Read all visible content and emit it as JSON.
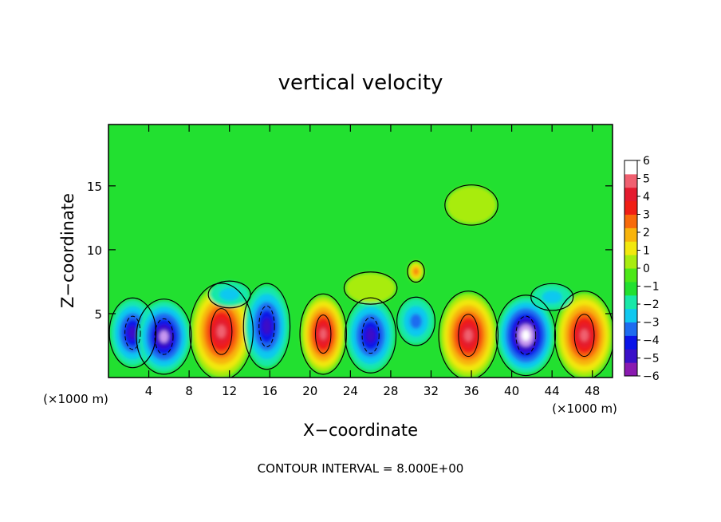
{
  "chart_data": {
    "type": "heatmap",
    "title": "vertical velocity",
    "xlabel": "X−coordinate",
    "ylabel": "Z−coordinate",
    "x_unit_label": "(×1000 m)",
    "x_unit_label_right": "(×1000 m)",
    "footer": "CONTOUR INTERVAL = 8.000E+00",
    "xlim": [
      0,
      50
    ],
    "ylim": [
      0,
      19.8
    ],
    "x_ticks": [
      4,
      8,
      12,
      16,
      20,
      24,
      28,
      32,
      36,
      40,
      44,
      48
    ],
    "x_tick_labels": [
      "4",
      "8",
      "12",
      "16",
      "20",
      "24",
      "28",
      "32",
      "36",
      "40",
      "44",
      "48"
    ],
    "y_ticks": [
      5,
      10,
      15
    ],
    "y_tick_labels": [
      "5",
      "10",
      "15"
    ],
    "colorbar": {
      "min": -6,
      "max": 6,
      "labels": [
        "6",
        "5",
        "4",
        "3",
        "2",
        "1",
        "0",
        "−1",
        "−2",
        "−3",
        "−4",
        "−5",
        "−6"
      ],
      "colors": [
        "#8a1ab0",
        "#3a10c8",
        "#0a14e8",
        "#1e6cf0",
        "#10c8f0",
        "#18e8a8",
        "#22e030",
        "#4ce818",
        "#a8ec10",
        "#f2e80e",
        "#f8b40c",
        "#f86a0a",
        "#f01e14",
        "#e41a2e",
        "#f06070",
        "#ffffff"
      ]
    },
    "cells": [
      {
        "x": 2.4,
        "z": 3.5,
        "w": -5.0,
        "rx": 2.2,
        "rz": 2.6
      },
      {
        "x": 5.5,
        "z": 3.2,
        "w": -5.5,
        "rx": 2.6,
        "rz": 2.8
      },
      {
        "x": 11.2,
        "z": 3.6,
        "w": 7.0,
        "rx": 3.0,
        "rz": 3.6
      },
      {
        "x": 15.7,
        "z": 4.0,
        "w": -5.0,
        "rx": 2.2,
        "rz": 3.2
      },
      {
        "x": 21.3,
        "z": 3.4,
        "w": 6.5,
        "rx": 2.2,
        "rz": 3.0
      },
      {
        "x": 26.0,
        "z": 3.3,
        "w": -4.5,
        "rx": 2.4,
        "rz": 2.8
      },
      {
        "x": 30.5,
        "z": 4.4,
        "w": -2.5,
        "rx": 1.8,
        "rz": 1.8
      },
      {
        "x": 35.7,
        "z": 3.3,
        "w": 7.0,
        "rx": 2.8,
        "rz": 3.3
      },
      {
        "x": 41.4,
        "z": 3.3,
        "w": -6.5,
        "rx": 2.8,
        "rz": 3.0
      },
      {
        "x": 47.2,
        "z": 3.3,
        "w": 7.0,
        "rx": 2.8,
        "rz": 3.3
      },
      {
        "x": 30.5,
        "z": 8.3,
        "w": 3.5,
        "rx": 0.8,
        "rz": 0.8
      },
      {
        "x": 26.0,
        "z": 7.0,
        "w": 1.0,
        "rx": 2.5,
        "rz": 1.2
      },
      {
        "x": 12.0,
        "z": 6.5,
        "w": -1.5,
        "rx": 2.0,
        "rz": 1.0
      },
      {
        "x": 44.0,
        "z": 6.3,
        "w": -1.8,
        "rx": 2.0,
        "rz": 1.0
      },
      {
        "x": 36.0,
        "z": 13.5,
        "w": 1.0,
        "rx": 2.5,
        "rz": 1.5
      }
    ]
  }
}
